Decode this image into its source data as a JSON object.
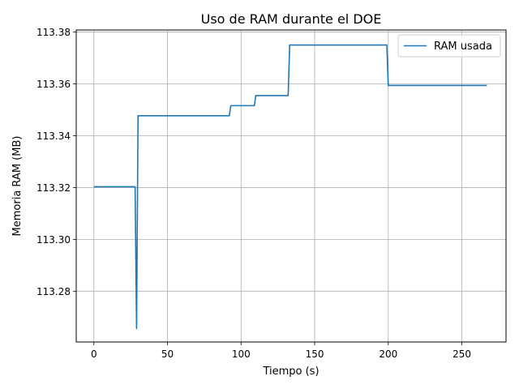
{
  "chart_data": {
    "type": "line",
    "title": "Uso de RAM durante el DOE",
    "xlabel": "Tiempo (s)",
    "ylabel": "Memoria RAM (MB)",
    "xlim": [
      -12,
      280
    ],
    "ylim": [
      113.2604,
      113.3808
    ],
    "xticks": [
      0,
      50,
      100,
      150,
      200,
      250
    ],
    "xtick_labels": [
      "0",
      "50",
      "100",
      "150",
      "200",
      "250"
    ],
    "yticks": [
      113.28,
      113.3,
      113.32,
      113.34,
      113.36,
      113.38
    ],
    "ytick_labels": [
      "113.28",
      "113.30",
      "113.32",
      "113.34",
      "113.36",
      "113.38"
    ],
    "grid": true,
    "legend_position": "top-right",
    "series": [
      {
        "name": "RAM usada",
        "color": "#1f77b4",
        "x": [
          0,
          28,
          29,
          30,
          92,
          93,
          109,
          110,
          132,
          133,
          199,
          200,
          267
        ],
        "y": [
          113.3203,
          113.3203,
          113.2656,
          113.3477,
          113.3477,
          113.3516,
          113.3516,
          113.3555,
          113.3555,
          113.375,
          113.375,
          113.3594,
          113.3594
        ]
      }
    ]
  }
}
